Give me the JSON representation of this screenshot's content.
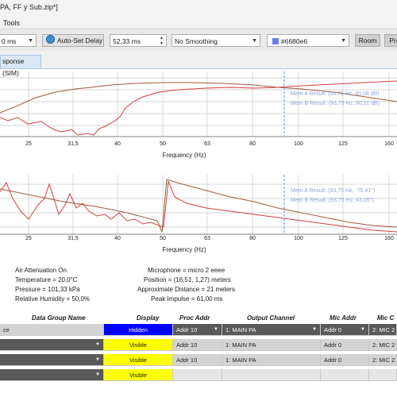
{
  "window": {
    "title": "PA, FF y Sub.zip*]"
  },
  "menu": {
    "tools": "Tools"
  },
  "toolbar": {
    "avg_select": "0 ms",
    "auto_set_delay": "Auto-Set Delay",
    "delay_value": "52,33 ms",
    "smoothing": "No Smoothing",
    "color_value": "#6680e6",
    "room_button": "Room",
    "next_button": "Pro"
  },
  "tabs": {
    "active": "sponse (SIM)"
  },
  "magnitude_plot": {
    "x_ticks": [
      "25",
      "31,5",
      "40",
      "50",
      "63",
      "80",
      "100",
      "125",
      "160"
    ],
    "xlabel": "Frequency (Hz)",
    "result_a": "Mem A Result: (93,75 Hz, 80,08 dB)",
    "result_b": "Mem B Result: (93,75 Hz, 80,11 dB)"
  },
  "phase_plot": {
    "x_ticks": [
      "25",
      "31,5",
      "40",
      "50",
      "63",
      "80",
      "100",
      "125",
      "160"
    ],
    "xlabel": "Frequency (Hz)",
    "result_a": "Mem A Result: (93,75 Hz, -75,41°)",
    "result_b": "Mem B Result: (93,75 Hz, 43,05°)"
  },
  "info": {
    "air_attenuation": "Air Attenuation On",
    "temperature": "Temperature = 20,0°C",
    "pressure": "Pressure = 101,33  kPa",
    "humidity": "Relative Humidity = 50,0%",
    "microphone": "Microphone = micro 2 eeee",
    "position": "Position = (16,51, 1,27) meters",
    "distance": "Approximate Distance = 21 meters",
    "peak_impulse": "Peak Impulse = 61,00 ms"
  },
  "table": {
    "headers": [
      "Data Group Name",
      "Display",
      "Proc Addr",
      "Output Channel",
      "Mic Addr",
      "Mic C"
    ],
    "rows": [
      {
        "name": "ce",
        "display": "Hidden",
        "proc": "Addr 10",
        "output": "1: MAIN PA",
        "mic": "Addr 0",
        "micc": "2: MIC 2"
      },
      {
        "name": "",
        "display": "Visible",
        "proc": "Addr 10",
        "output": "1: MAIN PA",
        "mic": "Addr 0",
        "micc": "2: MIC 2"
      },
      {
        "name": "",
        "display": "Visible",
        "proc": "Addr 10",
        "output": "1: MAIN PA",
        "mic": "Addr 0",
        "micc": "2: MIC 2"
      },
      {
        "name": "",
        "display": "Visible",
        "proc": "",
        "output": "",
        "mic": "",
        "micc": ""
      }
    ]
  },
  "colors": {
    "trace_a": "#d23f3f",
    "trace_b": "#9c5b3c",
    "cursor": "#6a8fd8",
    "hidden": "#0000ff",
    "visible": "#ffff00"
  }
}
